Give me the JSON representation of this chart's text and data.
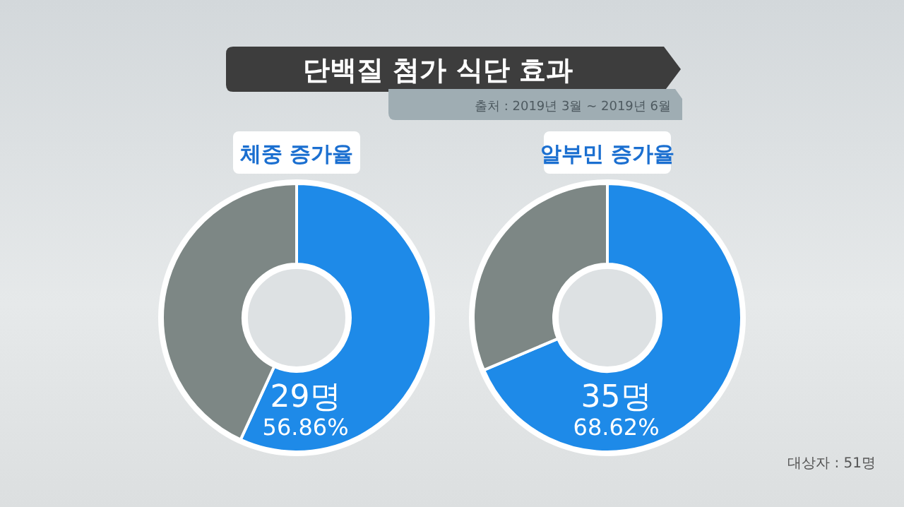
{
  "chart_data": [
    {
      "type": "other",
      "title": "단백질 첨가 식단 효과",
      "subtitle": "출처 : 2019년 3월 ~ 2019년 6월",
      "annotations": [
        "대상자 : 51명"
      ]
    },
    {
      "type": "donut",
      "title": "체중 증가율",
      "categories": [
        null,
        null
      ],
      "values": [
        56.86,
        43.14
      ],
      "colors": [
        "#1e8ae8",
        "#7d8785"
      ],
      "value_labels": [
        "29명 56.86%",
        null
      ]
    },
    {
      "type": "donut",
      "title": "알부민 증가율",
      "categories": [
        null,
        null
      ],
      "values": [
        68.62,
        31.38
      ],
      "colors": [
        "#1e8ae8",
        "#7d8785"
      ],
      "value_labels": [
        "35명 68.62%",
        null
      ]
    }
  ]
}
